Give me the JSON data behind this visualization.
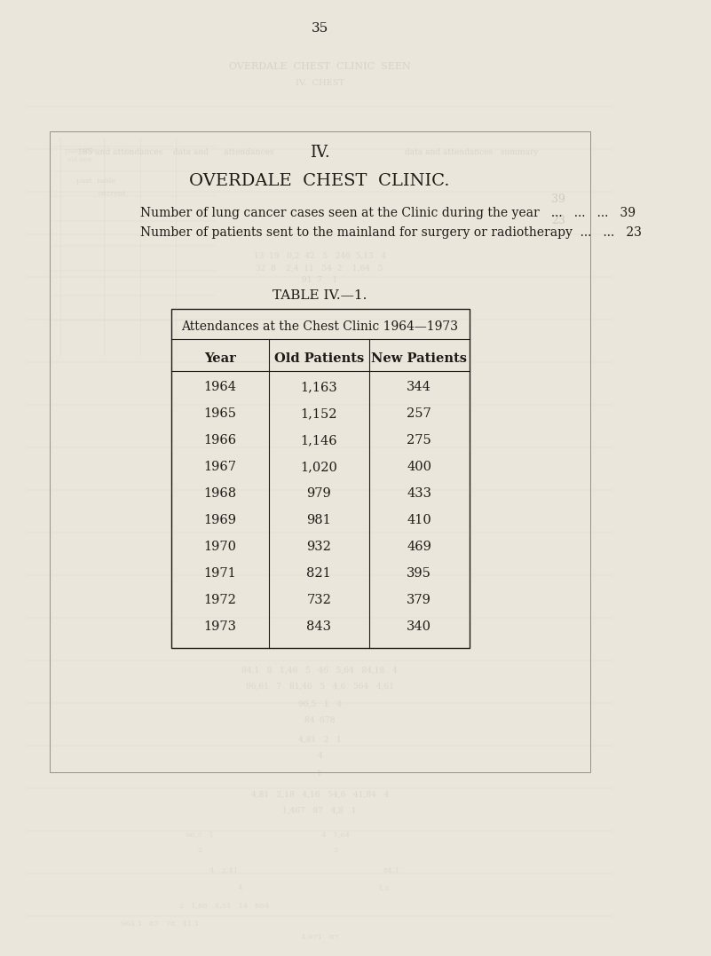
{
  "page_number": "35",
  "section_roman": "IV.",
  "section_title": "OVERDALE  CHEST  CLINIC.",
  "stat1_text": "Number of lung cancer cases seen at the Clinic during the year   ...   ...   ...   39",
  "stat2_text": "Number of patients sent to the mainland for surgery or radiotherapy  ...   ...   23",
  "table_label": "TABLE IV.—1.",
  "table_title": "Attendances at the Chest Clinic 1964—1973",
  "col_headers": [
    "Year",
    "Old Patients",
    "New Patients"
  ],
  "rows": [
    [
      "1964",
      "1,163",
      "344"
    ],
    [
      "1965",
      "1,152",
      "257"
    ],
    [
      "1966",
      "1,146",
      "275"
    ],
    [
      "1967",
      "1,020",
      "400"
    ],
    [
      "1968",
      "979",
      "433"
    ],
    [
      "1969",
      "981",
      "410"
    ],
    [
      "1970",
      "932",
      "469"
    ],
    [
      "1971",
      "821",
      "395"
    ],
    [
      "1972",
      "732",
      "379"
    ],
    [
      "1973",
      "843",
      "340"
    ]
  ],
  "bg_color": "#eae6dc",
  "text_color": "#1e1a16",
  "faded_color": "#b8b0a0"
}
